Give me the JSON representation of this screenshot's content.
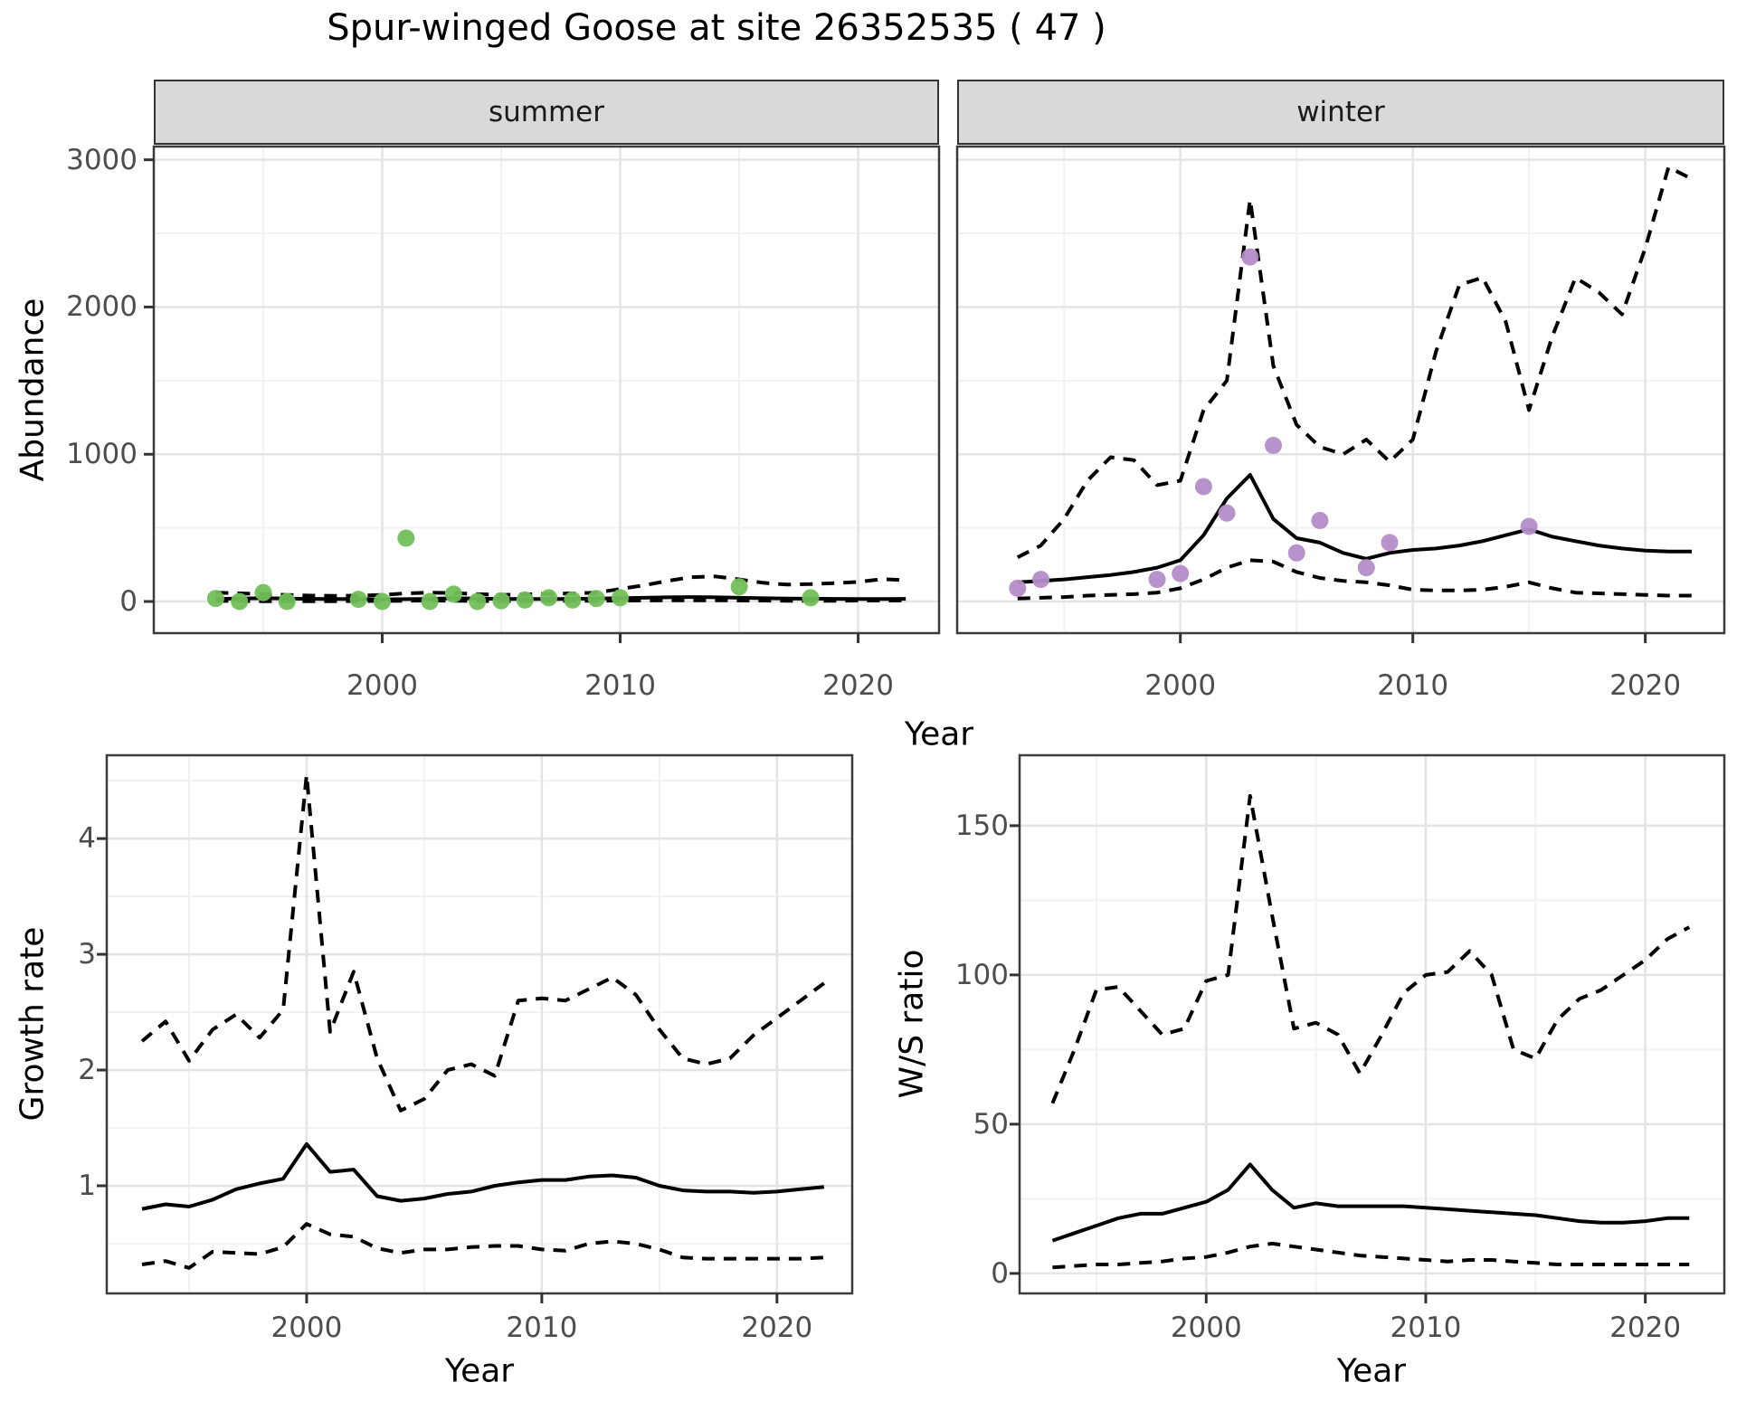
{
  "title": "Spur-winged Goose at site 26352535 ( 47 )",
  "facets": [
    {
      "label": "summer"
    },
    {
      "label": "winter"
    }
  ],
  "axis_titles": {
    "abundance": "Abundance",
    "year_top": "Year",
    "growth_rate": "Growth rate",
    "year_bottom_left": "Year",
    "ws_ratio": "W/S ratio",
    "year_bottom_right": "Year"
  },
  "colors": {
    "summer_point": "#72bf58",
    "winter_point": "#b48cc8",
    "line": "#000000",
    "grid_major": "#e4e4e4",
    "grid_minor": "#f2f2f2",
    "strip_bg": "#d9d9d9",
    "panel_border": "#3c3c3c",
    "tick_text": "#4d4d4d"
  },
  "chart_data": [
    {
      "id": "abundance-summer",
      "type": "line",
      "facet": "summer",
      "xlabel": "Year",
      "ylabel": "Abundance",
      "x": {
        "min": 1990.4,
        "max": 2023.4,
        "major": [
          2000,
          2010,
          2020
        ],
        "minor": [
          1995,
          2005,
          2015
        ]
      },
      "y": {
        "min": -215,
        "max": 3090,
        "major": [
          0,
          1000,
          2000,
          3000
        ],
        "minor": [
          500,
          1500,
          2500
        ]
      },
      "years": [
        1993,
        1994,
        1995,
        1996,
        1997,
        1998,
        1999,
        2000,
        2001,
        2002,
        2003,
        2004,
        2005,
        2006,
        2007,
        2008,
        2009,
        2010,
        2011,
        2012,
        2013,
        2014,
        2015,
        2016,
        2017,
        2018,
        2019,
        2020,
        2021,
        2022
      ],
      "series": [
        {
          "name": "fit",
          "style": "solid",
          "values": [
            18,
            20,
            22,
            20,
            18,
            17,
            16,
            15,
            16,
            18,
            22,
            20,
            18,
            17,
            17,
            18,
            20,
            22,
            25,
            28,
            30,
            28,
            25,
            22,
            20,
            19,
            18,
            17,
            17,
            18
          ]
        },
        {
          "name": "upper_ci",
          "style": "dashed",
          "values": [
            60,
            55,
            50,
            45,
            40,
            38,
            40,
            45,
            55,
            60,
            58,
            50,
            45,
            48,
            52,
            55,
            60,
            85,
            110,
            140,
            165,
            170,
            150,
            127,
            115,
            118,
            125,
            133,
            152,
            145
          ]
        },
        {
          "name": "lower_ci",
          "style": "dashed",
          "values": [
            5,
            3,
            2,
            2,
            2,
            2,
            3,
            4,
            5,
            6,
            5,
            4,
            3,
            3,
            4,
            5,
            5,
            6,
            7,
            8,
            8,
            8,
            7,
            6,
            5,
            5,
            5,
            6,
            6,
            6
          ]
        }
      ],
      "points": {
        "color_key": "summer_point",
        "years": [
          1993,
          1994,
          1995,
          1996,
          1999,
          2000,
          2001,
          2002,
          2003,
          2004,
          2005,
          2006,
          2007,
          2008,
          2009,
          2010,
          2015,
          2018
        ],
        "values": [
          20,
          0,
          60,
          0,
          15,
          0,
          430,
          0,
          50,
          0,
          5,
          10,
          25,
          10,
          20,
          25,
          100,
          25
        ]
      }
    },
    {
      "id": "abundance-winter",
      "type": "line",
      "facet": "winter",
      "xlabel": "Year",
      "ylabel": "Abundance",
      "x": {
        "min": 1990.4,
        "max": 2023.4,
        "major": [
          2000,
          2010,
          2020
        ],
        "minor": [
          1995,
          2005,
          2015
        ]
      },
      "y": {
        "min": -215,
        "max": 3090,
        "major": [
          0,
          1000,
          2000,
          3000
        ],
        "minor": [
          500,
          1500,
          2500
        ]
      },
      "years": [
        1993,
        1994,
        1995,
        1996,
        1997,
        1998,
        1999,
        2000,
        2001,
        2002,
        2003,
        2004,
        2005,
        2006,
        2007,
        2008,
        2009,
        2010,
        2011,
        2012,
        2013,
        2014,
        2015,
        2016,
        2017,
        2018,
        2019,
        2020,
        2021,
        2022
      ],
      "series": [
        {
          "name": "fit",
          "style": "solid",
          "values": [
            130,
            140,
            150,
            165,
            180,
            200,
            230,
            280,
            450,
            700,
            860,
            560,
            430,
            400,
            330,
            290,
            330,
            350,
            360,
            380,
            410,
            450,
            490,
            440,
            410,
            380,
            360,
            345,
            340,
            340
          ]
        },
        {
          "name": "upper_ci",
          "style": "dashed",
          "values": [
            300,
            380,
            560,
            820,
            980,
            960,
            790,
            820,
            1300,
            1500,
            2730,
            1600,
            1200,
            1050,
            1000,
            1100,
            950,
            1100,
            1700,
            2150,
            2200,
            1900,
            1300,
            1800,
            2200,
            2100,
            1950,
            2400,
            2950,
            2870
          ]
        },
        {
          "name": "lower_ci",
          "style": "dashed",
          "values": [
            20,
            25,
            30,
            40,
            45,
            50,
            60,
            90,
            150,
            230,
            280,
            270,
            200,
            160,
            140,
            130,
            110,
            80,
            75,
            75,
            80,
            100,
            130,
            90,
            60,
            55,
            50,
            45,
            40,
            40
          ]
        }
      ],
      "points": {
        "color_key": "winter_point",
        "years": [
          1993,
          1994,
          1999,
          2000,
          2001,
          2002,
          2003,
          2004,
          2005,
          2006,
          2008,
          2009,
          2015
        ],
        "values": [
          90,
          150,
          150,
          190,
          780,
          600,
          2340,
          1060,
          330,
          550,
          230,
          400,
          510
        ]
      }
    },
    {
      "id": "growth-rate",
      "type": "line",
      "facet": null,
      "xlabel": "Year",
      "ylabel": "Growth rate",
      "x": {
        "min": 1991.5,
        "max": 2023.2,
        "major": [
          2000,
          2010,
          2020
        ],
        "minor": [
          1995,
          2005,
          2015
        ]
      },
      "y": {
        "min": 0.07,
        "max": 4.72,
        "major": [
          1,
          2,
          3,
          4
        ],
        "minor": [
          0.5,
          1.5,
          2.5,
          3.5,
          4.5
        ]
      },
      "years": [
        1993,
        1994,
        1995,
        1996,
        1997,
        1998,
        1999,
        2000,
        2001,
        2002,
        2003,
        2004,
        2005,
        2006,
        2007,
        2008,
        2009,
        2010,
        2011,
        2012,
        2013,
        2014,
        2015,
        2016,
        2017,
        2018,
        2019,
        2020,
        2021,
        2022
      ],
      "series": [
        {
          "name": "fit",
          "style": "solid",
          "values": [
            0.8,
            0.84,
            0.82,
            0.88,
            0.97,
            1.02,
            1.06,
            1.36,
            1.12,
            1.14,
            0.91,
            0.87,
            0.89,
            0.93,
            0.95,
            1.0,
            1.03,
            1.05,
            1.05,
            1.08,
            1.09,
            1.07,
            1.0,
            0.96,
            0.95,
            0.95,
            0.94,
            0.95,
            0.97,
            0.99
          ]
        },
        {
          "name": "upper_ci",
          "style": "dashed",
          "values": [
            2.25,
            2.42,
            2.08,
            2.35,
            2.48,
            2.28,
            2.52,
            4.55,
            2.33,
            2.85,
            2.1,
            1.65,
            1.75,
            2.0,
            2.05,
            1.95,
            2.6,
            2.62,
            2.6,
            2.7,
            2.8,
            2.65,
            2.35,
            2.1,
            2.05,
            2.1,
            2.3,
            2.45,
            2.6,
            2.75
          ]
        },
        {
          "name": "lower_ci",
          "style": "dashed",
          "values": [
            0.32,
            0.35,
            0.29,
            0.43,
            0.42,
            0.41,
            0.47,
            0.67,
            0.58,
            0.56,
            0.46,
            0.42,
            0.45,
            0.45,
            0.47,
            0.48,
            0.48,
            0.45,
            0.44,
            0.5,
            0.52,
            0.5,
            0.45,
            0.38,
            0.37,
            0.37,
            0.37,
            0.37,
            0.37,
            0.38
          ]
        }
      ],
      "points": null
    },
    {
      "id": "ws-ratio",
      "type": "line",
      "facet": null,
      "xlabel": "Year",
      "ylabel": "W/S ratio",
      "x": {
        "min": 1991.5,
        "max": 2023.6,
        "major": [
          2000,
          2010,
          2020
        ],
        "minor": [
          1995,
          2005,
          2015
        ]
      },
      "y": {
        "min": -6.7,
        "max": 173.6,
        "major": [
          0,
          50,
          100,
          150
        ],
        "minor": [
          25,
          75,
          125
        ]
      },
      "years": [
        1993,
        1994,
        1995,
        1996,
        1997,
        1998,
        1999,
        2000,
        2001,
        2002,
        2003,
        2004,
        2005,
        2006,
        2007,
        2008,
        2009,
        2010,
        2011,
        2012,
        2013,
        2014,
        2015,
        2016,
        2017,
        2018,
        2019,
        2020,
        2021,
        2022
      ],
      "series": [
        {
          "name": "fit",
          "style": "solid",
          "values": [
            11,
            13.5,
            16,
            18.5,
            20,
            20,
            22,
            24,
            28,
            36.5,
            28,
            22,
            23.5,
            22.5,
            22.5,
            22.5,
            22.5,
            22,
            21.5,
            21,
            20.5,
            20,
            19.5,
            18.5,
            17.5,
            17,
            17,
            17.5,
            18.5,
            18.5
          ]
        },
        {
          "name": "upper_ci",
          "style": "dashed",
          "values": [
            57,
            75,
            95,
            96,
            88,
            80,
            82,
            98,
            100,
            160,
            120,
            82,
            84,
            80,
            67,
            80,
            94,
            100,
            101,
            108,
            100,
            75,
            72,
            85,
            92,
            95,
            100,
            105,
            112,
            116
          ]
        },
        {
          "name": "lower_ci",
          "style": "dashed",
          "values": [
            2,
            2.5,
            3,
            3,
            3.5,
            4,
            5,
            5.5,
            7,
            9,
            10,
            9,
            8,
            7,
            6,
            5.5,
            5,
            4.5,
            4,
            4.5,
            4.5,
            4,
            3.5,
            3,
            3,
            3,
            3,
            3,
            3,
            3
          ]
        }
      ],
      "points": null
    }
  ]
}
